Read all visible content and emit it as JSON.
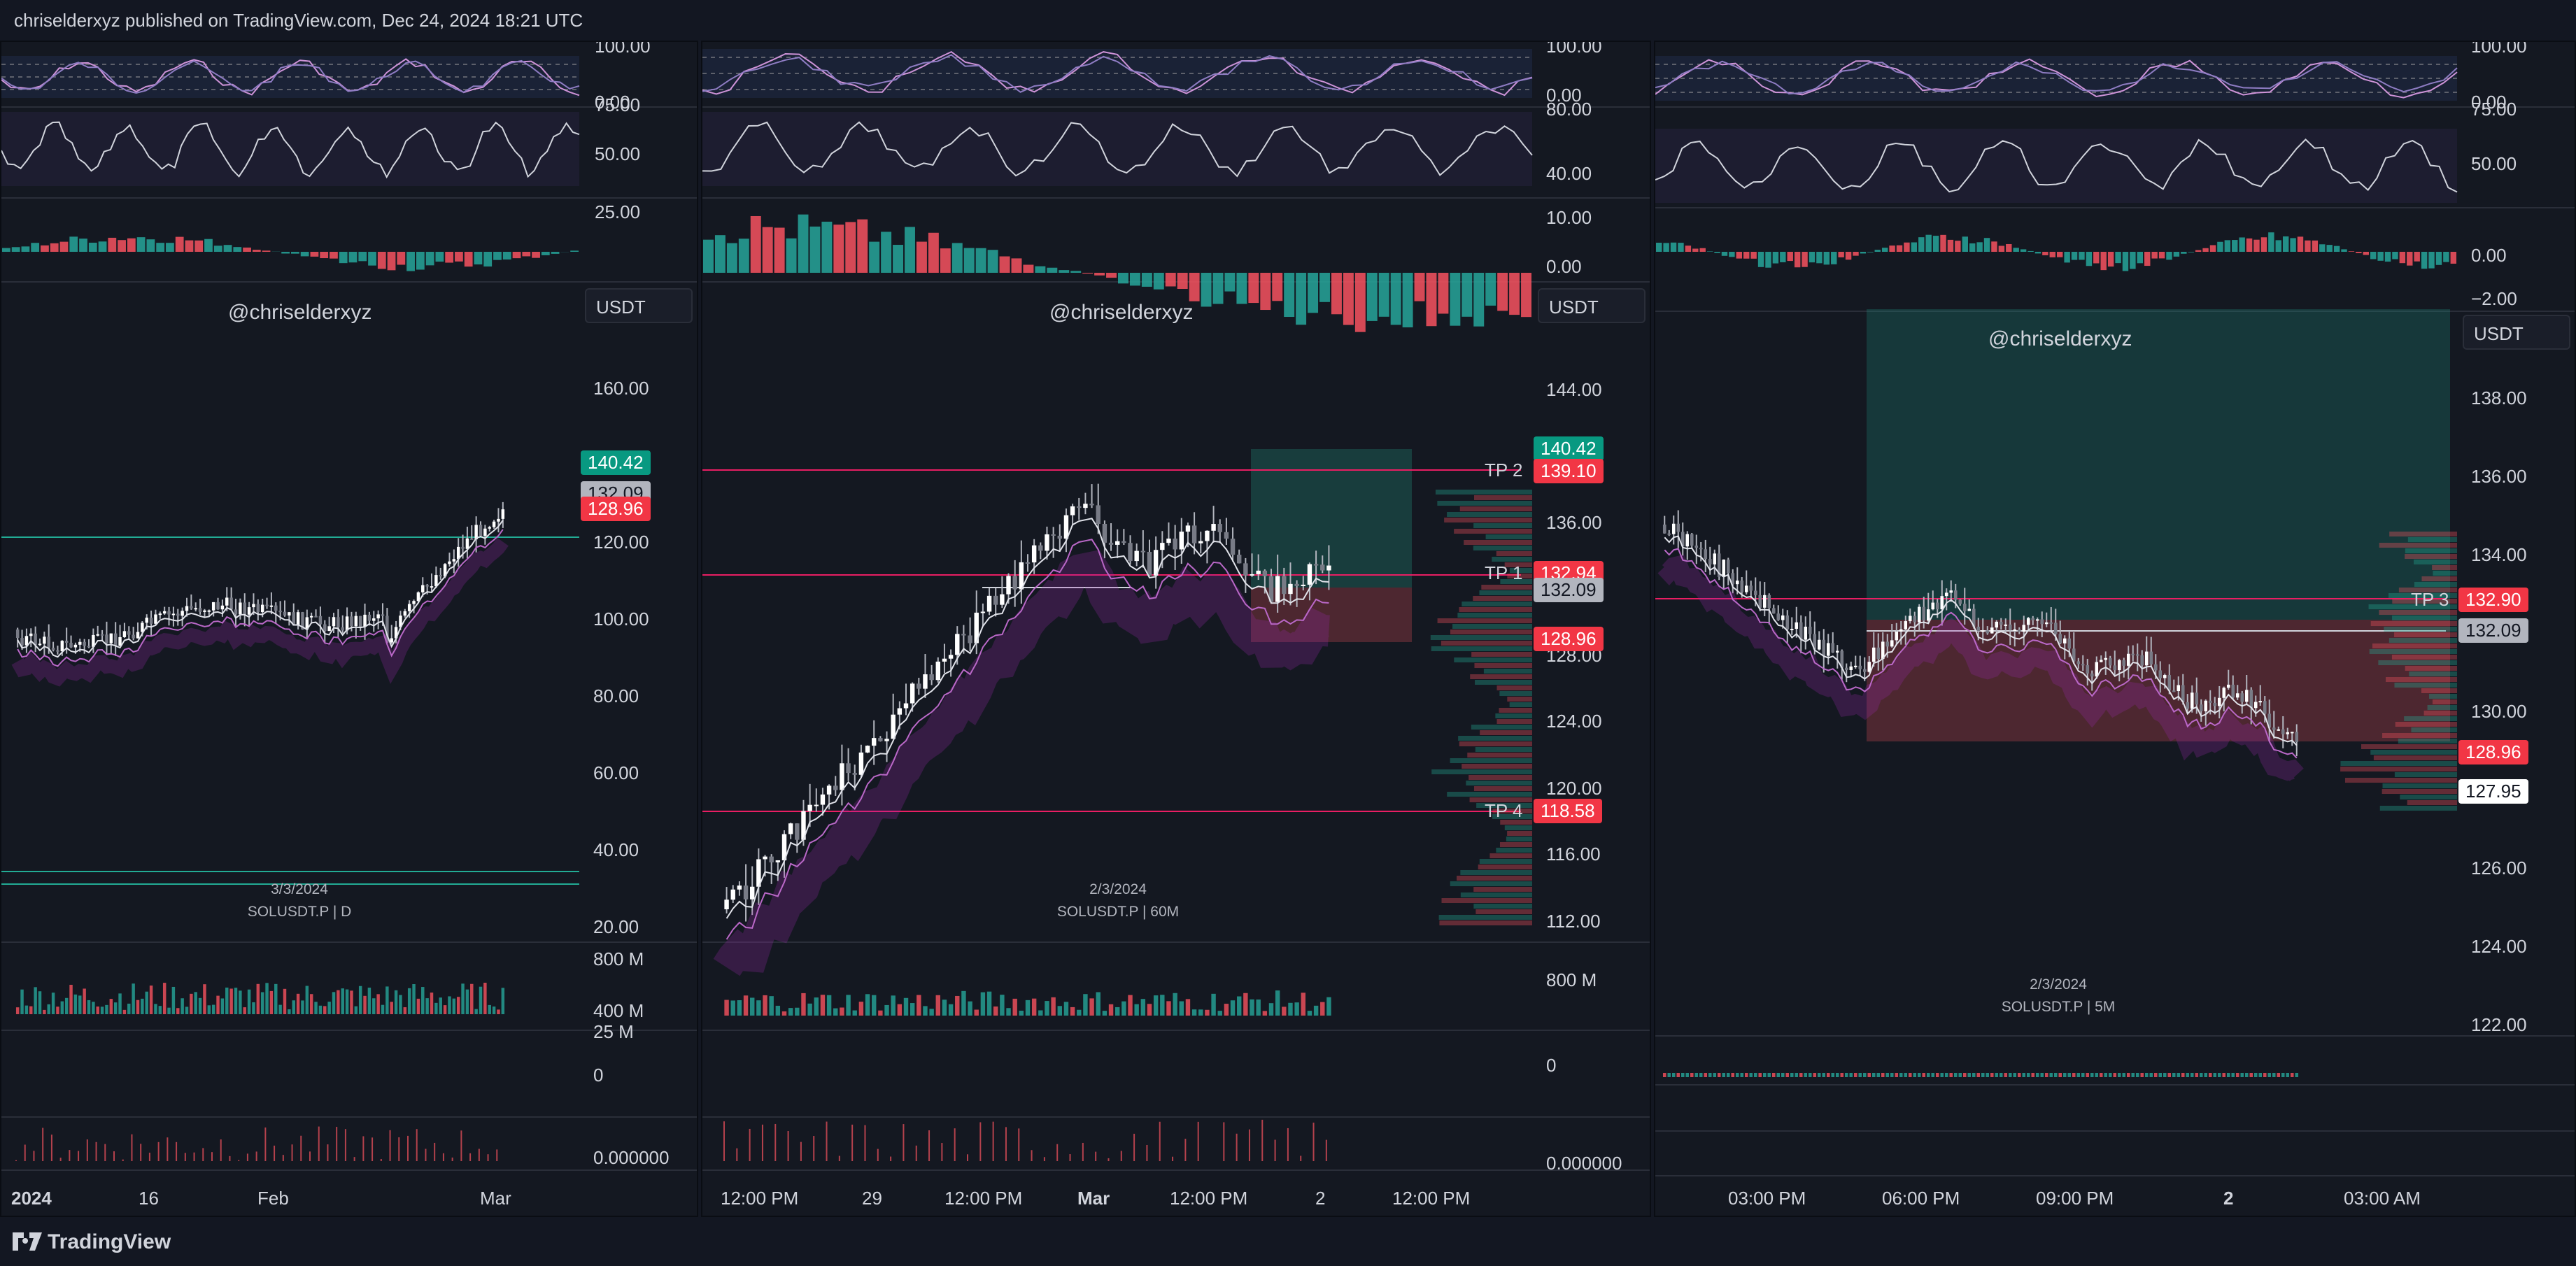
{
  "header": {
    "published_by": "chriselderxyz published on TradingView.com, Dec 24, 2024 18:21 UTC"
  },
  "footer": {
    "brand": "TradingView"
  },
  "colors": {
    "bg": "#141821",
    "green": "#26a69a",
    "red": "#f7525f",
    "magenta": "#e91e63",
    "purple": "#9c27b0",
    "teal": "#22ab94"
  },
  "panels": [
    {
      "watermark": "@chriselderxyz",
      "currency": "USDT",
      "symbol_date": "3/3/2024",
      "symbol": "SOLUSDT.P | D",
      "rsi_axis": [
        "100.00",
        "0.00"
      ],
      "rsi2_axis": [
        "75.00",
        "50.00"
      ],
      "macd_axis": [
        "25.00"
      ],
      "price_axis": [
        "160.00",
        "120.00",
        "100.00",
        "80.00",
        "60.00",
        "40.00",
        "20.00"
      ],
      "badges": {
        "top": "140.42",
        "mid": "132.09",
        "bottom": "128.96"
      },
      "vol_axis": [
        "800 M",
        "400 M"
      ],
      "oi_axis": [
        "25 M",
        "0"
      ],
      "fund_axis": [
        "0.000000"
      ],
      "time_axis": [
        "2024",
        "16",
        "Feb",
        "Mar"
      ]
    },
    {
      "watermark": "@chriselderxyz",
      "currency": "USDT",
      "symbol_date": "2/3/2024",
      "symbol": "SOLUSDT.P | 60M",
      "rsi_axis": [
        "100.00",
        "0.00"
      ],
      "rsi2_axis": [
        "80.00",
        "40.00"
      ],
      "macd_axis": [
        "10.00",
        "0.00"
      ],
      "price_axis": [
        "144.00",
        "136.00",
        "128.00",
        "124.00",
        "120.00",
        "116.00",
        "112.00"
      ],
      "badges": {
        "top": "140.42",
        "tp2": "139.10",
        "tp1": "132.94",
        "mid": "132.09",
        "bottom": "128.96",
        "tp4": "118.58"
      },
      "tp_labels": {
        "tp2": "TP 2",
        "tp1": "TP 1",
        "tp4": "TP 4"
      },
      "vol_axis": [
        "800 M"
      ],
      "oi_axis": [
        "0"
      ],
      "fund_axis": [
        "0.000000"
      ],
      "time_axis": [
        "12:00 PM",
        "29",
        "12:00 PM",
        "Mar",
        "12:00 PM",
        "2",
        "12:00 PM"
      ]
    },
    {
      "watermark": "@chriselderxyz",
      "currency": "USDT",
      "symbol_date": "2/3/2024",
      "symbol": "SOLUSDT.P | 5M",
      "rsi_axis": [
        "100.00",
        "0.00"
      ],
      "rsi2_axis": [
        "75.00",
        "50.00"
      ],
      "macd_axis": [
        "0.00",
        "−2.00"
      ],
      "price_axis": [
        "138.00",
        "136.00",
        "134.00",
        "130.00",
        "126.00",
        "124.00",
        "122.00"
      ],
      "badges": {
        "tp3": "132.90",
        "mid": "132.09",
        "bottom": "128.96",
        "last": "127.95"
      },
      "tp_labels": {
        "tp3": "TP 3"
      },
      "time_axis": [
        "03:00 PM",
        "06:00 PM",
        "09:00 PM",
        "2",
        "03:00 AM"
      ]
    }
  ]
}
